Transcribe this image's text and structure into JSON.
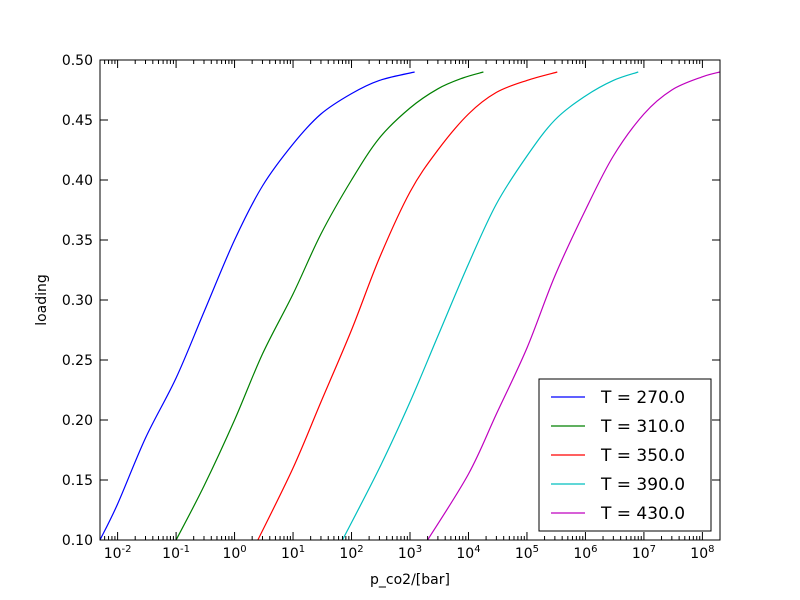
{
  "chart_data": {
    "type": "line",
    "xlabel": "p_co2/[bar]",
    "ylabel": "loading",
    "xscale": "log",
    "xlim": [
      0.005,
      200000000
    ],
    "ylim": [
      0.1,
      0.5
    ],
    "grid": false,
    "legend": "lower-right",
    "x_ticks": [
      {
        "base": "10",
        "exp": "-2"
      },
      {
        "base": "10",
        "exp": "-1"
      },
      {
        "base": "10",
        "exp": "0"
      },
      {
        "base": "10",
        "exp": "1"
      },
      {
        "base": "10",
        "exp": "2"
      },
      {
        "base": "10",
        "exp": "3"
      },
      {
        "base": "10",
        "exp": "4"
      },
      {
        "base": "10",
        "exp": "5"
      },
      {
        "base": "10",
        "exp": "6"
      },
      {
        "base": "10",
        "exp": "7"
      },
      {
        "base": "10",
        "exp": "8"
      }
    ],
    "y_ticks": [
      "0.10",
      "0.15",
      "0.20",
      "0.25",
      "0.30",
      "0.35",
      "0.40",
      "0.45",
      "0.50"
    ],
    "series": [
      {
        "name": "T = 270.0",
        "color": "#0000ff",
        "points": [
          [
            0.005,
            0.1
          ],
          [
            0.01,
            0.13
          ],
          [
            0.03,
            0.185
          ],
          [
            0.1,
            0.235
          ],
          [
            0.3,
            0.29
          ],
          [
            1,
            0.35
          ],
          [
            3,
            0.395
          ],
          [
            10,
            0.43
          ],
          [
            30,
            0.455
          ],
          [
            100,
            0.472
          ],
          [
            300,
            0.483
          ],
          [
            1200,
            0.49
          ]
        ]
      },
      {
        "name": "T = 310.0",
        "color": "#008000",
        "points": [
          [
            0.1,
            0.1
          ],
          [
            0.3,
            0.145
          ],
          [
            1,
            0.2
          ],
          [
            3,
            0.255
          ],
          [
            10,
            0.305
          ],
          [
            30,
            0.355
          ],
          [
            100,
            0.4
          ],
          [
            300,
            0.435
          ],
          [
            1000,
            0.46
          ],
          [
            3000,
            0.476
          ],
          [
            8000,
            0.485
          ],
          [
            18000,
            0.49
          ]
        ]
      },
      {
        "name": "T = 350.0",
        "color": "#ff0000",
        "points": [
          [
            2.5,
            0.1
          ],
          [
            10,
            0.16
          ],
          [
            30,
            0.215
          ],
          [
            100,
            0.275
          ],
          [
            300,
            0.335
          ],
          [
            1000,
            0.39
          ],
          [
            3000,
            0.425
          ],
          [
            10000,
            0.455
          ],
          [
            30000,
            0.473
          ],
          [
            100000,
            0.483
          ],
          [
            330000,
            0.49
          ]
        ]
      },
      {
        "name": "T = 390.0",
        "color": "#00bfbf",
        "points": [
          [
            70,
            0.1
          ],
          [
            300,
            0.16
          ],
          [
            1000,
            0.215
          ],
          [
            3000,
            0.27
          ],
          [
            10000,
            0.33
          ],
          [
            30000,
            0.38
          ],
          [
            100000,
            0.42
          ],
          [
            300000,
            0.45
          ],
          [
            1000000,
            0.47
          ],
          [
            3000000,
            0.483
          ],
          [
            8000000,
            0.49
          ]
        ]
      },
      {
        "name": "T = 430.0",
        "color": "#bf00bf",
        "points": [
          [
            2000,
            0.1
          ],
          [
            10000,
            0.155
          ],
          [
            30000,
            0.205
          ],
          [
            100000,
            0.26
          ],
          [
            300000,
            0.32
          ],
          [
            1000000,
            0.375
          ],
          [
            3000000,
            0.42
          ],
          [
            10000000,
            0.455
          ],
          [
            30000000,
            0.475
          ],
          [
            100000000,
            0.486
          ],
          [
            200000000,
            0.49
          ]
        ]
      }
    ]
  }
}
